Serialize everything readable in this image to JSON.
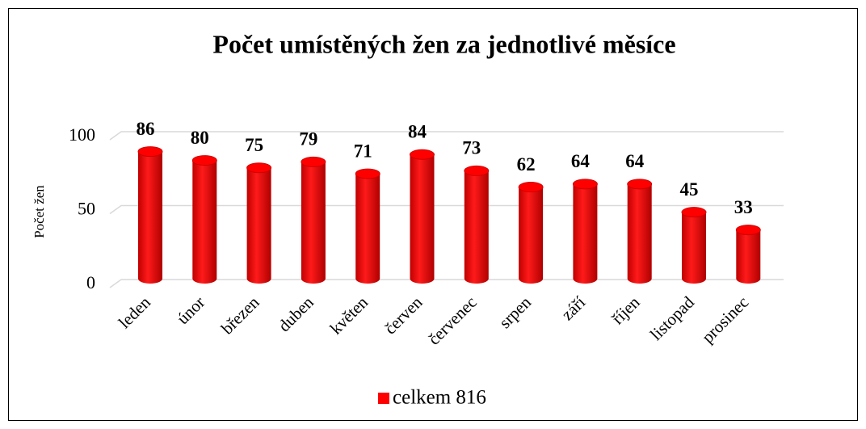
{
  "chart_data": {
    "type": "bar",
    "title": "Počet umístěných žen za jednotlivé měsíce",
    "y_label": "Počet žen",
    "categories": [
      "leden",
      "únor",
      "březen",
      "duben",
      "květen",
      "červen",
      "červenec",
      "srpen",
      "září",
      "říjen",
      "listopad",
      "prosinec"
    ],
    "series": [
      {
        "name": "celkem 816",
        "color": "#ff0000",
        "values": [
          86,
          80,
          75,
          79,
          71,
          84,
          73,
          62,
          64,
          64,
          45,
          33
        ]
      }
    ],
    "ylim": [
      0,
      100
    ],
    "yticks": [
      0,
      50,
      100
    ],
    "grid": true,
    "legend": "bottom"
  }
}
